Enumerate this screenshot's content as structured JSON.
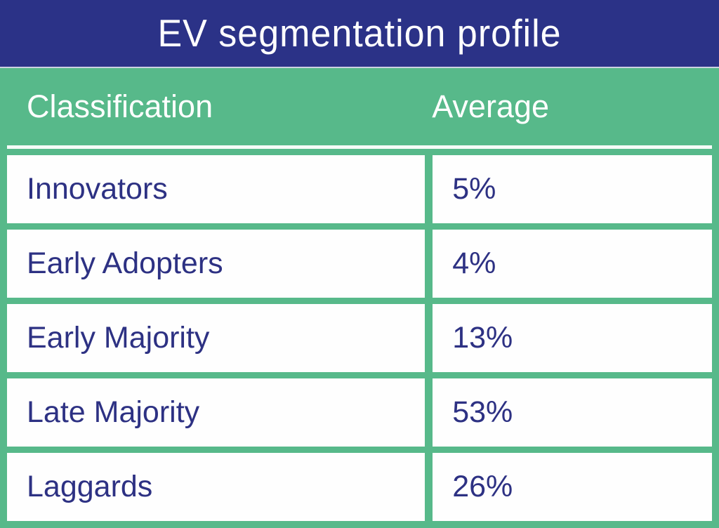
{
  "header": {
    "title": "EV segmentation profile"
  },
  "table": {
    "columns": [
      "Classification",
      "Average"
    ],
    "rows": [
      {
        "classification": "Innovators",
        "average": "5%"
      },
      {
        "classification": "Early Adopters",
        "average": "4%"
      },
      {
        "classification": "Early Majority",
        "average": "13%"
      },
      {
        "classification": "Late Majority",
        "average": "53%"
      },
      {
        "classification": "Laggards",
        "average": "26%"
      }
    ]
  },
  "chart_data": {
    "type": "table",
    "title": "EV segmentation profile",
    "columns": [
      "Classification",
      "Average"
    ],
    "rows": [
      [
        "Innovators",
        "5%"
      ],
      [
        "Early Adopters",
        "4%"
      ],
      [
        "Early Majority",
        "13%"
      ],
      [
        "Late Majority",
        "53%"
      ],
      [
        "Laggards",
        "26%"
      ]
    ],
    "categories": [
      "Innovators",
      "Early Adopters",
      "Early Majority",
      "Late Majority",
      "Laggards"
    ],
    "values": [
      5,
      4,
      13,
      53,
      26
    ],
    "value_unit": "%"
  },
  "colors": {
    "title_bar_bg": "#2b3287",
    "table_green": "#57b98a",
    "cell_bg": "#fefefe",
    "cell_text": "#2d3183",
    "header_text": "#ffffff"
  }
}
